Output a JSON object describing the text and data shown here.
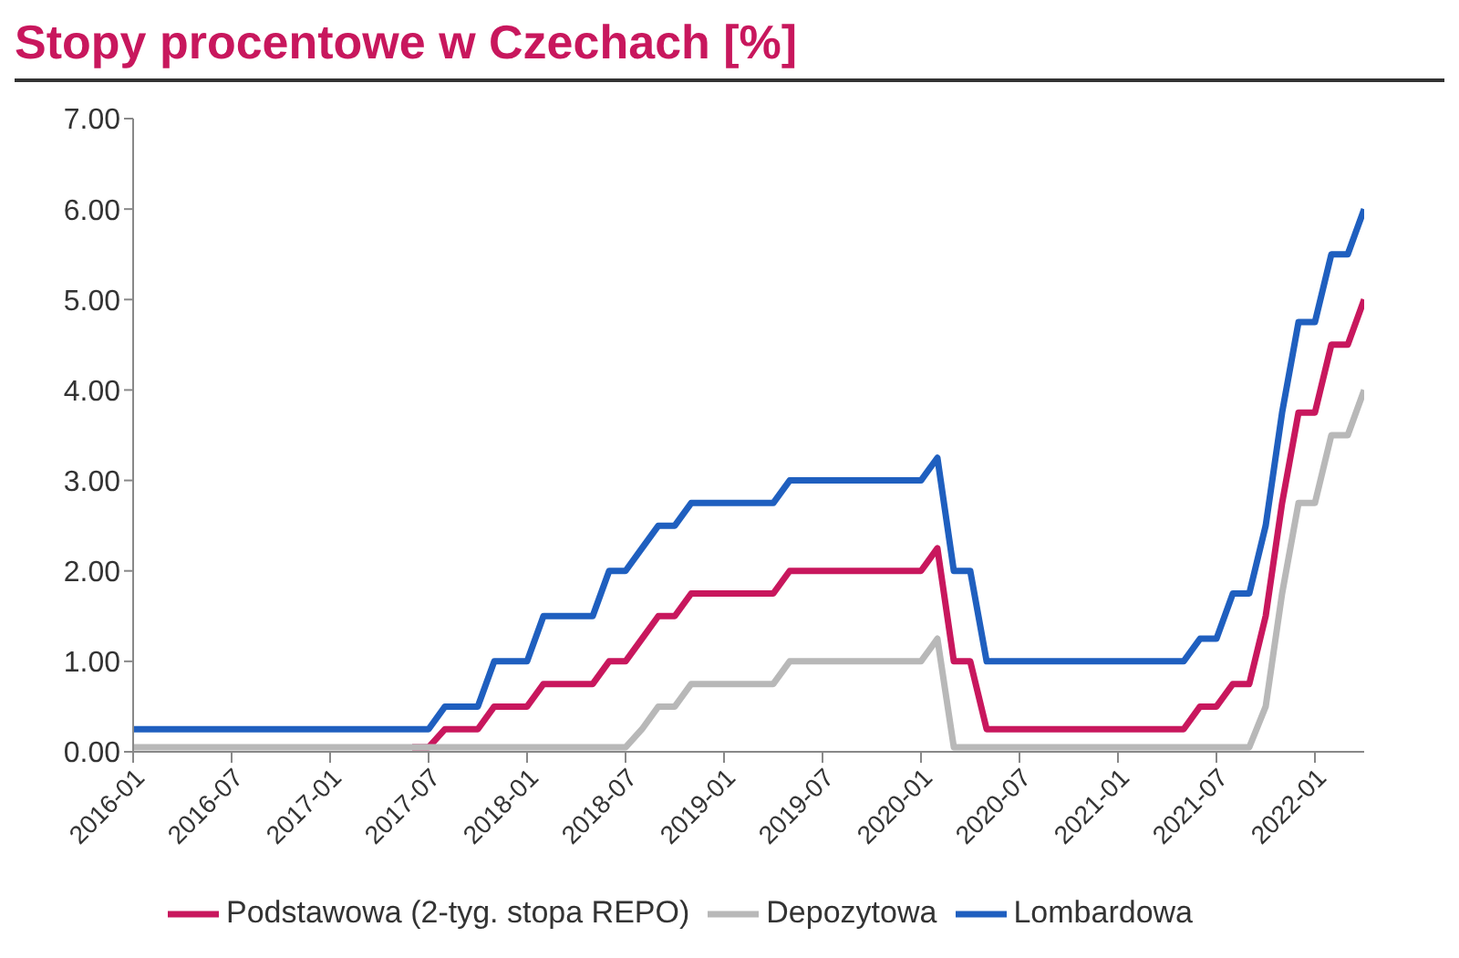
{
  "chart_data": {
    "type": "line",
    "title": "Stopy procentowe w Czechach [%]",
    "x": [
      "2016-01",
      "2016-02",
      "2016-03",
      "2016-04",
      "2016-05",
      "2016-06",
      "2016-07",
      "2016-08",
      "2016-09",
      "2016-10",
      "2016-11",
      "2016-12",
      "2017-01",
      "2017-02",
      "2017-03",
      "2017-04",
      "2017-05",
      "2017-06",
      "2017-07",
      "2017-08",
      "2017-09",
      "2017-10",
      "2017-11",
      "2017-12",
      "2018-01",
      "2018-02",
      "2018-03",
      "2018-04",
      "2018-05",
      "2018-06",
      "2018-07",
      "2018-08",
      "2018-09",
      "2018-10",
      "2018-11",
      "2018-12",
      "2019-01",
      "2019-02",
      "2019-03",
      "2019-04",
      "2019-05",
      "2019-06",
      "2019-07",
      "2019-08",
      "2019-09",
      "2019-10",
      "2019-11",
      "2019-12",
      "2020-01",
      "2020-02",
      "2020-03",
      "2020-04",
      "2020-05",
      "2020-06",
      "2020-07",
      "2020-08",
      "2020-09",
      "2020-10",
      "2020-11",
      "2020-12",
      "2021-01",
      "2021-02",
      "2021-03",
      "2021-04",
      "2021-05",
      "2021-06",
      "2021-07",
      "2021-08",
      "2021-09",
      "2021-10",
      "2021-11",
      "2021-12",
      "2022-01",
      "2022-02",
      "2022-03",
      "2022-04"
    ],
    "series": [
      {
        "name": "Podstawowa (2-tyg. stopa REPO)",
        "color": "#c8175d",
        "values": [
          null,
          null,
          null,
          null,
          null,
          null,
          null,
          null,
          null,
          null,
          null,
          null,
          null,
          null,
          null,
          null,
          null,
          0.05,
          0.05,
          0.25,
          0.25,
          0.25,
          0.5,
          0.5,
          0.5,
          0.75,
          0.75,
          0.75,
          0.75,
          1.0,
          1.0,
          1.25,
          1.5,
          1.5,
          1.75,
          1.75,
          1.75,
          1.75,
          1.75,
          1.75,
          2.0,
          2.0,
          2.0,
          2.0,
          2.0,
          2.0,
          2.0,
          2.0,
          2.0,
          2.25,
          1.0,
          1.0,
          0.25,
          0.25,
          0.25,
          0.25,
          0.25,
          0.25,
          0.25,
          0.25,
          0.25,
          0.25,
          0.25,
          0.25,
          0.25,
          0.5,
          0.5,
          0.75,
          0.75,
          1.5,
          2.75,
          3.75,
          3.75,
          4.5,
          4.5,
          5.0
        ]
      },
      {
        "name": "Depozytowa",
        "color": "#b8b8b8",
        "values": [
          0.05,
          0.05,
          0.05,
          0.05,
          0.05,
          0.05,
          0.05,
          0.05,
          0.05,
          0.05,
          0.05,
          0.05,
          0.05,
          0.05,
          0.05,
          0.05,
          0.05,
          0.05,
          0.05,
          0.05,
          0.05,
          0.05,
          0.05,
          0.05,
          0.05,
          0.05,
          0.05,
          0.05,
          0.05,
          0.05,
          0.05,
          0.25,
          0.5,
          0.5,
          0.75,
          0.75,
          0.75,
          0.75,
          0.75,
          0.75,
          1.0,
          1.0,
          1.0,
          1.0,
          1.0,
          1.0,
          1.0,
          1.0,
          1.0,
          1.25,
          0.05,
          0.05,
          0.05,
          0.05,
          0.05,
          0.05,
          0.05,
          0.05,
          0.05,
          0.05,
          0.05,
          0.05,
          0.05,
          0.05,
          0.05,
          0.05,
          0.05,
          0.05,
          0.05,
          0.5,
          1.75,
          2.75,
          2.75,
          3.5,
          3.5,
          4.0
        ]
      },
      {
        "name": "Lombardowa",
        "color": "#1f5fbf",
        "values": [
          0.25,
          0.25,
          0.25,
          0.25,
          0.25,
          0.25,
          0.25,
          0.25,
          0.25,
          0.25,
          0.25,
          0.25,
          0.25,
          0.25,
          0.25,
          0.25,
          0.25,
          0.25,
          0.25,
          0.5,
          0.5,
          0.5,
          1.0,
          1.0,
          1.0,
          1.5,
          1.5,
          1.5,
          1.5,
          2.0,
          2.0,
          2.25,
          2.5,
          2.5,
          2.75,
          2.75,
          2.75,
          2.75,
          2.75,
          2.75,
          3.0,
          3.0,
          3.0,
          3.0,
          3.0,
          3.0,
          3.0,
          3.0,
          3.0,
          3.25,
          2.0,
          2.0,
          1.0,
          1.0,
          1.0,
          1.0,
          1.0,
          1.0,
          1.0,
          1.0,
          1.0,
          1.0,
          1.0,
          1.0,
          1.0,
          1.25,
          1.25,
          1.75,
          1.75,
          2.5,
          3.75,
          4.75,
          4.75,
          5.5,
          5.5,
          6.0
        ]
      }
    ],
    "xlim": [
      "2016-01",
      "2022-04"
    ],
    "xticks": [
      "2016-01",
      "2016-07",
      "2017-01",
      "2017-07",
      "2018-01",
      "2018-07",
      "2019-01",
      "2019-07",
      "2020-01",
      "2020-07",
      "2021-01",
      "2021-07",
      "2022-01"
    ],
    "ylim": [
      0,
      7
    ],
    "yticks": [
      {
        "value": 0,
        "label": "0.00"
      },
      {
        "value": 1,
        "label": "1.00"
      },
      {
        "value": 2,
        "label": "2.00"
      },
      {
        "value": 3,
        "label": "3.00"
      },
      {
        "value": 4,
        "label": "4.00"
      },
      {
        "value": 5,
        "label": "5.00"
      },
      {
        "value": 6,
        "label": "6.00"
      },
      {
        "value": 7,
        "label": "7.00"
      }
    ],
    "grid": false,
    "legend": "bottom",
    "marker": "none",
    "line_style": "solid"
  }
}
